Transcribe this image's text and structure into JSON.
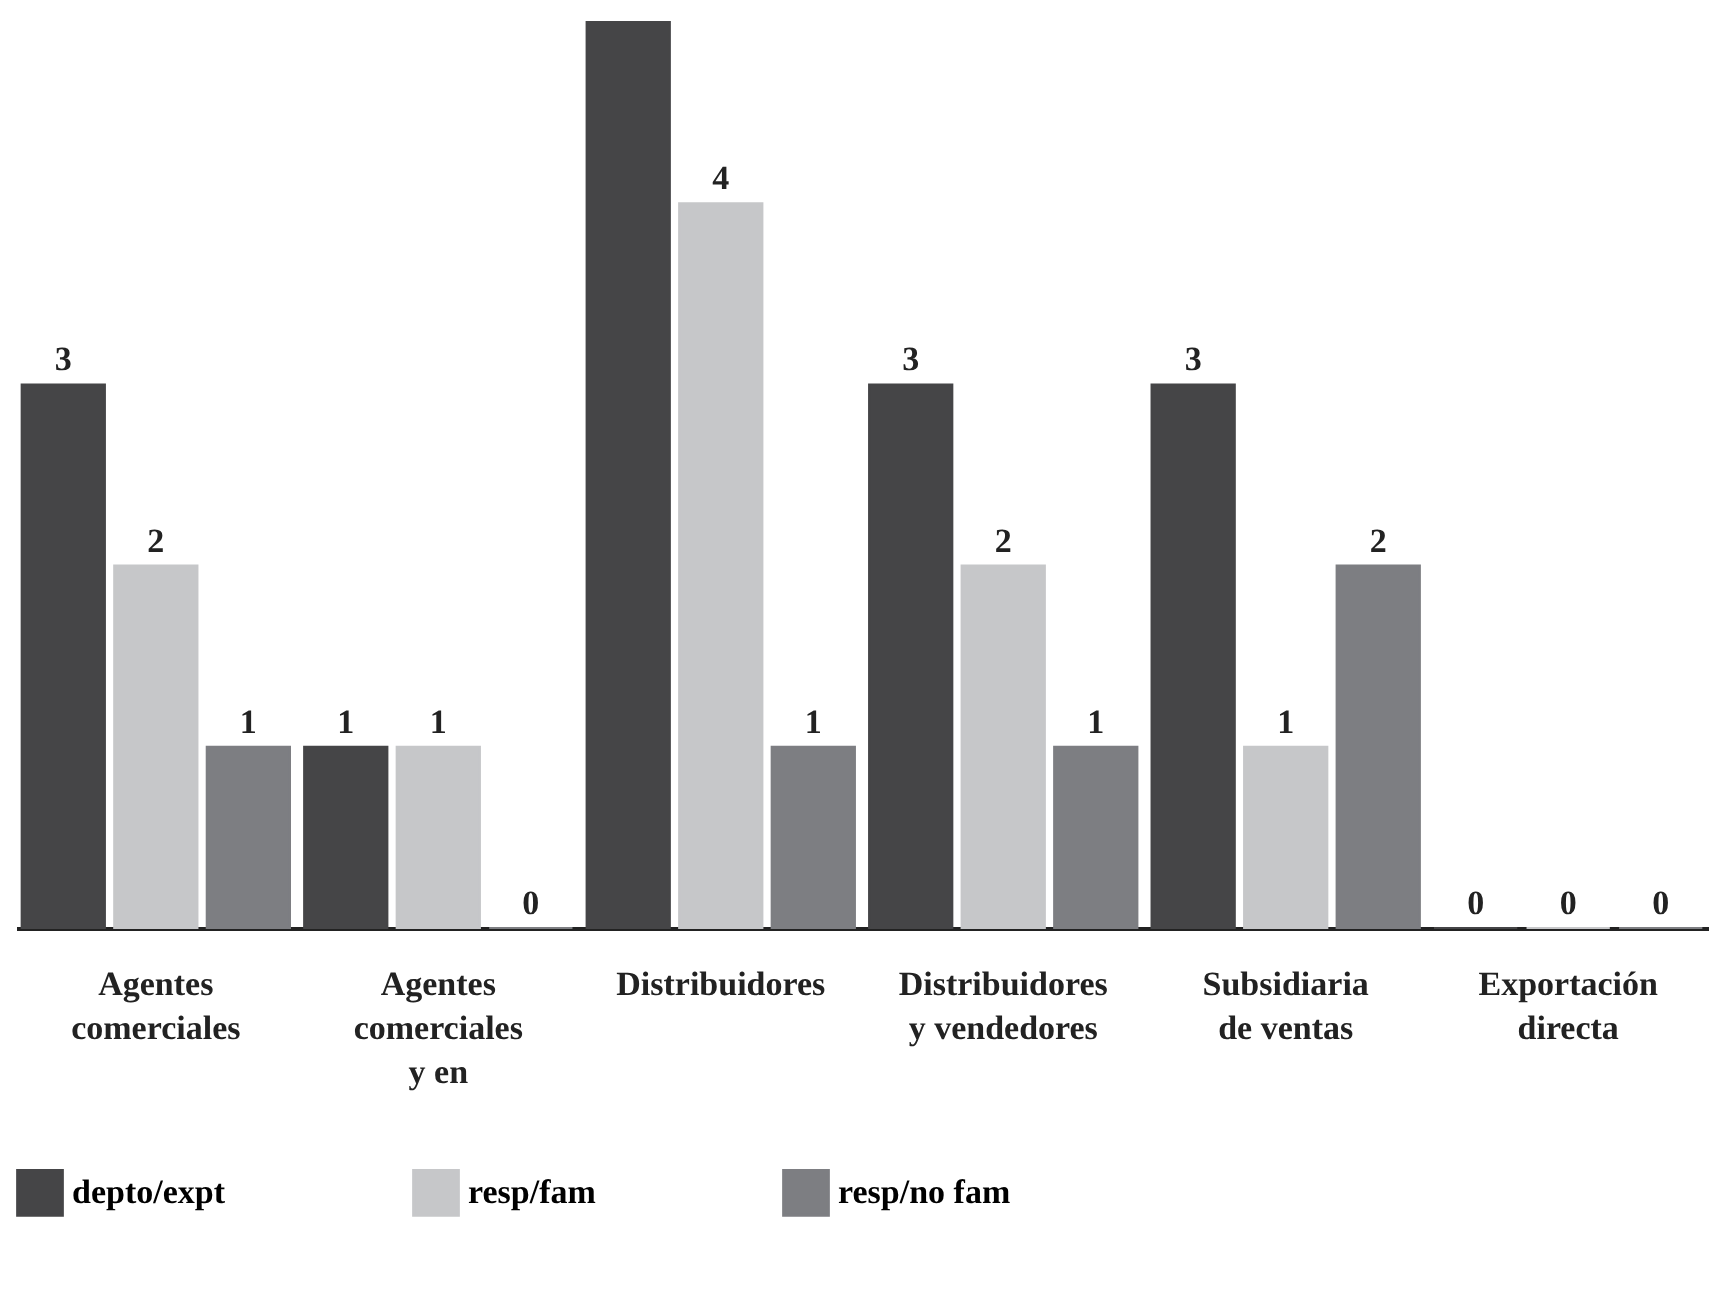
{
  "chart_data": {
    "type": "bar",
    "categories": [
      "Agentes\ncomerciales",
      "Agentes\ncomerciales\ny en",
      "Distribuidores",
      "Distribuidores\ny vendedores",
      "Subsidiaria\nde ventas",
      "Exportación\ndirecta"
    ],
    "series": [
      {
        "name": "depto/expt",
        "color": "#454547",
        "values": [
          3,
          1,
          5,
          3,
          3,
          0
        ],
        "value_labels": [
          "3",
          "1",
          null,
          "3",
          "3",
          "0"
        ]
      },
      {
        "name": "resp/fam",
        "color": "#c6c7c9",
        "values": [
          2,
          1,
          4,
          2,
          1,
          0
        ],
        "value_labels": [
          "2",
          "1",
          "4",
          "2",
          "1",
          "0"
        ]
      },
      {
        "name": "resp/no fam",
        "color": "#7d7e82",
        "values": [
          1,
          0,
          1,
          1,
          2,
          0
        ],
        "value_labels": [
          "1",
          "0",
          "1",
          "1",
          "2",
          "0"
        ]
      }
    ],
    "ylim": [
      0,
      5
    ],
    "tick_labels": "x",
    "grid": false,
    "legend": "bottom"
  }
}
